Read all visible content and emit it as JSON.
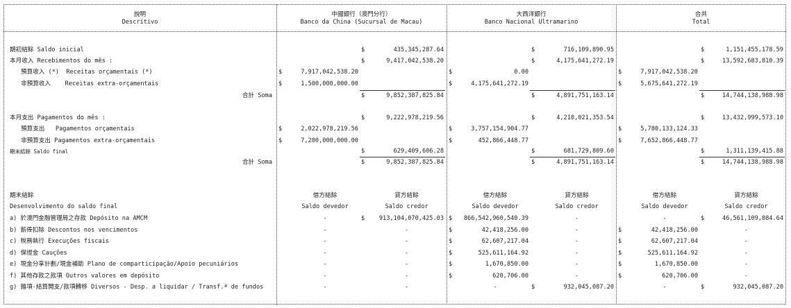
{
  "header": {
    "descritivo": {
      "zh": "說明",
      "pt": "Descritivo"
    },
    "columns": [
      {
        "key": "boc",
        "zh": "中國銀行（澳門分行）",
        "pt": "Banco da China (Sucursal de Macau)"
      },
      {
        "key": "bnu",
        "zh": "大西洋銀行",
        "pt": "Banco Nacional Ultramarino"
      },
      {
        "key": "total",
        "zh": "合共",
        "pt": "Total"
      }
    ]
  },
  "currency": "$",
  "movement_rows": [
    {
      "label": "期初結餘 Saldo inicial",
      "style": "main",
      "boc": {
        "main": "435,345,287.64"
      },
      "bnu": {
        "main": "716,109,890.95"
      },
      "total": {
        "main": "1,151,455,178.59"
      }
    },
    {
      "label": "本月收入 Recebimentos do mês :",
      "style": "main",
      "boc": {
        "main": "9,417,042,538.20"
      },
      "bnu": {
        "main": "4,175,641,272.19"
      },
      "total": {
        "main": "13,592,683,810.39"
      }
    },
    {
      "label": "預算收入 (*)  Receitas orçamentais (*)",
      "style": "indent",
      "boc": {
        "sub": "7,917,042,538.20"
      },
      "bnu": {
        "sub": "0.00"
      },
      "total": {
        "sub": "7,917,042,538.20"
      }
    },
    {
      "label": "非預算收入    Receitas extra-orçamentais",
      "style": "indent",
      "boc": {
        "sub": "1,500,000,000.00"
      },
      "bnu": {
        "sub": "4,175,641,272.19"
      },
      "total": {
        "sub": "5,675,641,272.19"
      }
    },
    {
      "label": "合計 Soma",
      "style": "sum",
      "boc": {
        "main": "9,852,387,825.84"
      },
      "bnu": {
        "main": "4,891,751,163.14"
      },
      "total": {
        "main": "14,744,138,988.98"
      }
    },
    {
      "label": "本月支出 Pagamentos do mês :",
      "style": "main",
      "boc": {
        "main": "9,222,978,219.56"
      },
      "bnu": {
        "main": "4,210,021,353.54"
      },
      "total": {
        "main": "13,432,999,573.10"
      }
    },
    {
      "label": "預算支出   Pagamentos orçamentais",
      "style": "indent",
      "boc": {
        "sub": "2,022,978,219.56"
      },
      "bnu": {
        "sub": "3,757,154,904.77"
      },
      "total": {
        "sub": "5,780,133,124.33"
      }
    },
    {
      "label": "非預算支出 Pagamentos extra-orçamentais",
      "style": "indent",
      "boc": {
        "sub": "7,200,000,000.00"
      },
      "bnu": {
        "sub": "452,866,448.77"
      },
      "total": {
        "sub": "7,652,866,448.77"
      }
    },
    {
      "label": "期末結餘 Saldo final",
      "style": "small",
      "boc": {
        "main": "629,409,606.28"
      },
      "bnu": {
        "main": "681,729,809.60"
      },
      "total": {
        "main": "1,311,139,415.88"
      }
    },
    {
      "label": "合計 Soma",
      "style": "sum",
      "boc": {
        "main": "9,852,387,825.84"
      },
      "bnu": {
        "main": "4,891,751,163.14"
      },
      "total": {
        "main": "14,744,138,988.98"
      }
    }
  ],
  "balance_section": {
    "title_zh": "期末結餘",
    "title_pt": "Desenvolvimento do saldo final",
    "debit_zh": "借方結餘",
    "debit_pt": "Saldo devedor",
    "credit_zh": "貸方結餘",
    "credit_pt": "Saldo credor",
    "rows": [
      {
        "label": "a) 於澳門金融管理局之存款 Depósito na AMCM",
        "boc": {
          "debit": "-",
          "credit": "913,104,070,425.03"
        },
        "bnu": {
          "debit": "866,542,960,540.39",
          "credit": "-"
        },
        "total": {
          "debit": "-",
          "credit": "46,561,109,884.64"
        }
      },
      {
        "label": "b) 薪俸扣除 Descontos nos vencimentos",
        "boc": {
          "debit": "-",
          "credit": "-"
        },
        "bnu": {
          "debit": "42,418,256.00",
          "credit": "-"
        },
        "total": {
          "debit": "42,418,256.00",
          "credit": "-"
        }
      },
      {
        "label": "c) 稅務執行 Execuções fiscais",
        "boc": {
          "debit": "-",
          "credit": "-"
        },
        "bnu": {
          "debit": "62,607,217.04",
          "credit": "-"
        },
        "total": {
          "debit": "62,607,217.04",
          "credit": "-"
        }
      },
      {
        "label": "d) 保證金 Cauções",
        "boc": {
          "debit": "-",
          "credit": "-"
        },
        "bnu": {
          "debit": "525,611,164.92",
          "credit": "-"
        },
        "total": {
          "debit": "525,611,164.92",
          "credit": "-"
        }
      },
      {
        "label": "e) 現金分享計劃/現金補助 Plano de comparticipação/Apoio pecuniários",
        "boc": {
          "debit": "-",
          "credit": "-"
        },
        "bnu": {
          "debit": "1,670,850.00",
          "credit": "-"
        },
        "total": {
          "debit": "1,670,850.00",
          "credit": "-"
        }
      },
      {
        "label": "f) 其他存款之款項 Outros valores em depósito",
        "boc": {
          "debit": "-",
          "credit": "-"
        },
        "bnu": {
          "debit": "620,706.00",
          "credit": "-"
        },
        "total": {
          "debit": "620,706.00",
          "credit": "-"
        }
      },
      {
        "label": "g) 雜項-結算開支/款項轉移 Diversos - Desp. a liquidar / Transf.ª de fundos",
        "boc": {
          "debit": "-",
          "credit": "-"
        },
        "bnu": {
          "debit": "-",
          "credit": "932,045,087.20"
        },
        "total": {
          "debit": "-",
          "credit": "932,045,087.20"
        }
      }
    ]
  }
}
